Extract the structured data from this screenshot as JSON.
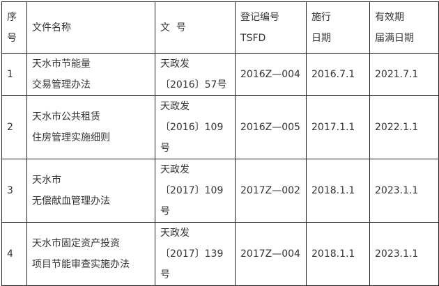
{
  "header": {
    "seq": [
      "序",
      "号"
    ],
    "name": [
      "文件名称"
    ],
    "doc_no": [
      "文  号"
    ],
    "reg_no": [
      "登记编号",
      "TSFD"
    ],
    "effective": [
      "施行",
      "日期"
    ],
    "expiry": [
      "有效期",
      "届满日期"
    ]
  },
  "rows": [
    {
      "seq": "1",
      "name": [
        "天水市节能量",
        "交易管理办法"
      ],
      "doc_no": [
        "天政发",
        "〔2016〕57号"
      ],
      "reg_no": "2016Z—004",
      "effective": "2016.7.1",
      "expiry": "2021.7.1"
    },
    {
      "seq": "2",
      "name": [
        "天水市公共租赁",
        "住房管理实施细则"
      ],
      "doc_no": [
        "天政发",
        "〔2016〕109",
        "号"
      ],
      "reg_no": "2016Z—005",
      "effective": "2017.1.1",
      "expiry": "2022.1.1"
    },
    {
      "seq": "3",
      "name": [
        "天水市",
        "无偿献血管理办法"
      ],
      "doc_no": [
        "天政发",
        "〔2017〕109",
        "号"
      ],
      "reg_no": "2017Z—002",
      "effective": "2018.1.1",
      "expiry": "2023.1.1"
    },
    {
      "seq": "4",
      "name": [
        "天水市固定资产投资",
        "项目节能审查实施办法"
      ],
      "doc_no": [
        "天政发",
        "〔2017〕139",
        "号"
      ],
      "reg_no": "2017Z—004",
      "effective": "2018.1.1",
      "expiry": "2023.1.1"
    }
  ]
}
